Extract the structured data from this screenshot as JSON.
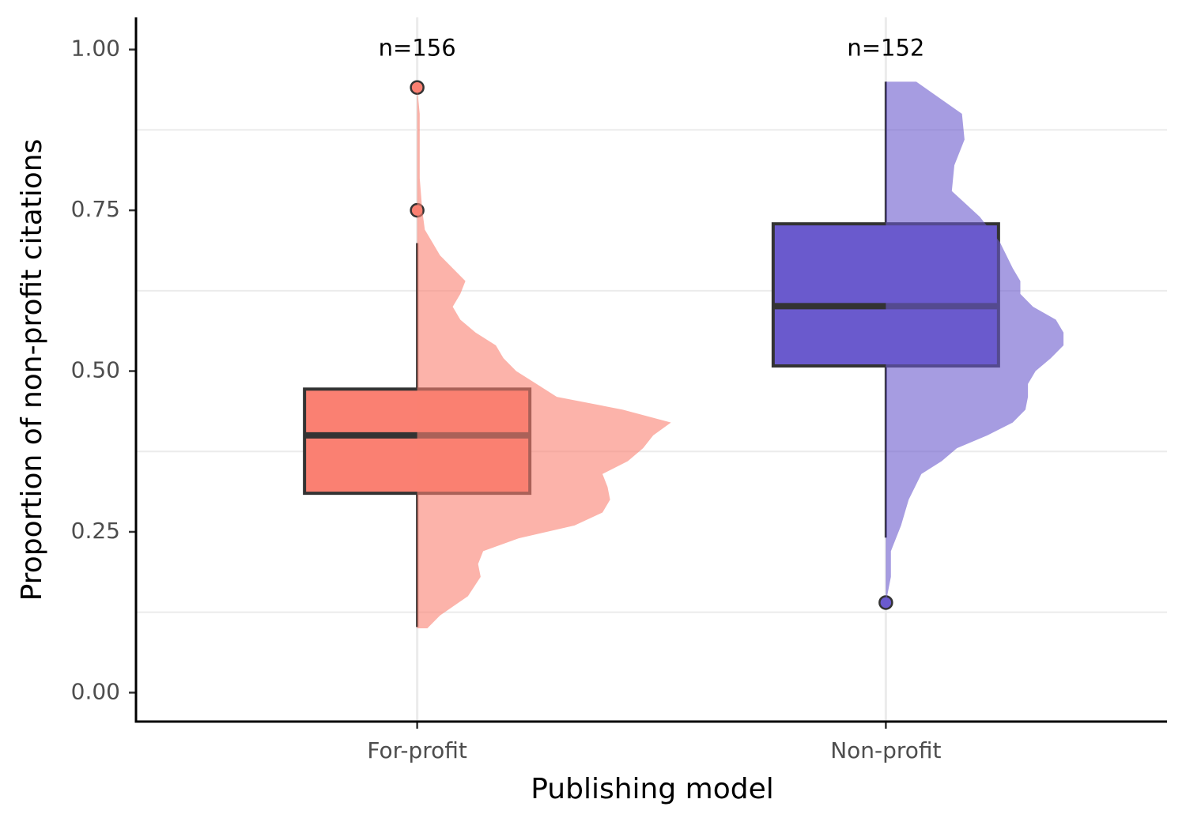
{
  "chart_data": {
    "type": "box-violin",
    "xlabel": "Publishing model",
    "ylabel": "Proportion of non-profit citations",
    "categories": [
      "For-profit",
      "Non-profit"
    ],
    "xlim": [
      0.4,
      2.6
    ],
    "ylim": [
      -0.045,
      1.05
    ],
    "yticks": [
      {
        "value": 0,
        "label": "0.00"
      },
      {
        "value": 0.25,
        "label": "0.25"
      },
      {
        "value": 0.5,
        "label": "0.50"
      },
      {
        "value": 0.75,
        "label": "0.75"
      },
      {
        "value": 1,
        "label": "1.00"
      }
    ],
    "minor_grid_y": [
      0.125,
      0.375,
      0.625,
      0.875
    ],
    "grid_x": true,
    "boxes": [
      {
        "color": "#fa8072",
        "label": "n=156",
        "whislo": 0.102,
        "q1": 0.31,
        "med": 0.4,
        "q3": 0.472,
        "whishi": 0.699,
        "outliers": [
          0.941,
          0.75
        ],
        "density": {
          "y": [
            0.1,
            0.12,
            0.15,
            0.18,
            0.2,
            0.22,
            0.24,
            0.26,
            0.28,
            0.3,
            0.32,
            0.34,
            0.36,
            0.38,
            0.4,
            0.42,
            0.44,
            0.46,
            0.48,
            0.5,
            0.52,
            0.54,
            0.56,
            0.58,
            0.6,
            0.62,
            0.64,
            0.66,
            0.68,
            0.7,
            0.72,
            0.75,
            0.8,
            0.85,
            0.9,
            0.94
          ],
          "values": [
            0.04,
            0.09,
            0.2,
            0.25,
            0.24,
            0.26,
            0.4,
            0.62,
            0.73,
            0.76,
            0.75,
            0.73,
            0.83,
            0.89,
            0.93,
            1,
            0.81,
            0.55,
            0.47,
            0.39,
            0.34,
            0.31,
            0.23,
            0.17,
            0.14,
            0.17,
            0.19,
            0.14,
            0.09,
            0.06,
            0.03,
            0.02,
            0.01,
            0.01,
            0.01,
            0
          ]
        }
      },
      {
        "color": "#6a5acd",
        "label": "n=152",
        "whislo": 0.241,
        "q1": 0.508,
        "med": 0.601,
        "q3": 0.729,
        "whishi": 0.95,
        "outliers": [
          0.14
        ],
        "density": {
          "y": [
            0.14,
            0.18,
            0.22,
            0.26,
            0.3,
            0.34,
            0.36,
            0.38,
            0.4,
            0.42,
            0.44,
            0.46,
            0.48,
            0.5,
            0.52,
            0.54,
            0.56,
            0.58,
            0.6,
            0.62,
            0.64,
            0.66,
            0.7,
            0.74,
            0.78,
            0.82,
            0.86,
            0.9,
            0.95
          ],
          "values": [
            0,
            0.02,
            0.02,
            0.06,
            0.09,
            0.14,
            0.22,
            0.28,
            0.4,
            0.5,
            0.55,
            0.56,
            0.56,
            0.59,
            0.65,
            0.7,
            0.7,
            0.67,
            0.58,
            0.53,
            0.53,
            0.5,
            0.45,
            0.37,
            0.26,
            0.27,
            0.31,
            0.3,
            0.12
          ]
        }
      }
    ]
  }
}
